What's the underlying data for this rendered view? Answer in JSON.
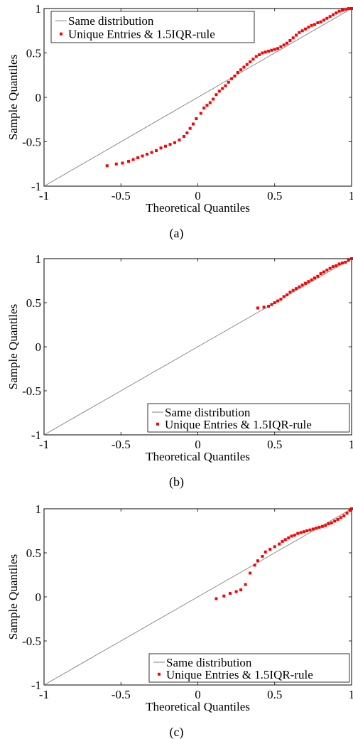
{
  "chart_data": [
    {
      "type": "scatter",
      "caption": "(a)",
      "xlabel": "Theoretical Quantiles",
      "ylabel": "Sample Quantiles",
      "xlim": [
        -1,
        1
      ],
      "ylim": [
        -1,
        1
      ],
      "xticks": [
        -1,
        -0.5,
        0,
        0.5,
        1
      ],
      "xtick_labels": [
        "-1",
        "-0.5",
        "0",
        "0.5",
        "1"
      ],
      "yticks": [
        -1,
        -0.5,
        0,
        0.5,
        1
      ],
      "ytick_labels": [
        "-1",
        "-0.5",
        "0",
        "0.5",
        "1"
      ],
      "grid": false,
      "legend_position": "top-left",
      "reference_line": {
        "name": "Same distribution",
        "color": "#808080",
        "x": [
          -1,
          1
        ],
        "y": [
          -1,
          1
        ]
      },
      "series": [
        {
          "name": "Unique Entries & 1.5IQR-rule",
          "color": "#ff0000",
          "points": [
            [
              -0.59,
              -0.77
            ],
            [
              -0.53,
              -0.75
            ],
            [
              -0.49,
              -0.74
            ],
            [
              -0.45,
              -0.72
            ],
            [
              -0.42,
              -0.7
            ],
            [
              -0.39,
              -0.68
            ],
            [
              -0.36,
              -0.66
            ],
            [
              -0.33,
              -0.64
            ],
            [
              -0.3,
              -0.62
            ],
            [
              -0.27,
              -0.6
            ],
            [
              -0.24,
              -0.57
            ],
            [
              -0.21,
              -0.55
            ],
            [
              -0.18,
              -0.53
            ],
            [
              -0.15,
              -0.51
            ],
            [
              -0.12,
              -0.48
            ],
            [
              -0.09,
              -0.44
            ],
            [
              -0.07,
              -0.4
            ],
            [
              -0.05,
              -0.35
            ],
            [
              -0.03,
              -0.3
            ],
            [
              -0.01,
              -0.24
            ],
            [
              0.02,
              -0.18
            ],
            [
              0.04,
              -0.12
            ],
            [
              0.06,
              -0.09
            ],
            [
              0.08,
              -0.06
            ],
            [
              0.1,
              -0.02
            ],
            [
              0.12,
              0.03
            ],
            [
              0.14,
              0.07
            ],
            [
              0.16,
              0.1
            ],
            [
              0.18,
              0.13
            ],
            [
              0.2,
              0.17
            ],
            [
              0.22,
              0.21
            ],
            [
              0.24,
              0.24
            ],
            [
              0.26,
              0.28
            ],
            [
              0.28,
              0.31
            ],
            [
              0.3,
              0.34
            ],
            [
              0.32,
              0.37
            ],
            [
              0.34,
              0.4
            ],
            [
              0.36,
              0.43
            ],
            [
              0.38,
              0.46
            ],
            [
              0.4,
              0.48
            ],
            [
              0.42,
              0.5
            ],
            [
              0.44,
              0.51
            ],
            [
              0.46,
              0.52
            ],
            [
              0.48,
              0.53
            ],
            [
              0.5,
              0.54
            ],
            [
              0.52,
              0.55
            ],
            [
              0.54,
              0.57
            ],
            [
              0.56,
              0.59
            ],
            [
              0.58,
              0.61
            ],
            [
              0.6,
              0.64
            ],
            [
              0.62,
              0.67
            ],
            [
              0.64,
              0.7
            ],
            [
              0.66,
              0.73
            ],
            [
              0.68,
              0.75
            ],
            [
              0.7,
              0.77
            ],
            [
              0.72,
              0.79
            ],
            [
              0.74,
              0.81
            ],
            [
              0.76,
              0.82
            ],
            [
              0.78,
              0.84
            ],
            [
              0.8,
              0.85
            ],
            [
              0.82,
              0.87
            ],
            [
              0.84,
              0.89
            ],
            [
              0.86,
              0.91
            ],
            [
              0.88,
              0.93
            ],
            [
              0.9,
              0.95
            ],
            [
              0.92,
              0.97
            ],
            [
              0.94,
              0.98
            ],
            [
              0.96,
              0.99
            ],
            [
              0.98,
              1.0
            ],
            [
              1.0,
              1.0
            ]
          ]
        }
      ]
    },
    {
      "type": "scatter",
      "caption": "(b)",
      "xlabel": "Theoretical Quantiles",
      "ylabel": "Sample Quantiles",
      "xlim": [
        -1,
        1
      ],
      "ylim": [
        -1,
        1
      ],
      "xticks": [
        -1,
        -0.5,
        0,
        0.5,
        1
      ],
      "xtick_labels": [
        "-1",
        "-0.5",
        "0",
        "0.5",
        "1"
      ],
      "yticks": [
        -1,
        -0.5,
        0,
        0.5,
        1
      ],
      "ytick_labels": [
        "-1",
        "-0.5",
        "0",
        "0.5",
        "1"
      ],
      "grid": false,
      "legend_position": "bottom-right",
      "reference_line": {
        "name": "Same distribution",
        "color": "#808080",
        "x": [
          -1,
          1
        ],
        "y": [
          -1,
          1
        ]
      },
      "series": [
        {
          "name": "Unique Entries & 1.5IQR-rule",
          "color": "#ff0000",
          "points": [
            [
              0.39,
              0.44
            ],
            [
              0.43,
              0.45
            ],
            [
              0.46,
              0.46
            ],
            [
              0.48,
              0.48
            ],
            [
              0.5,
              0.5
            ],
            [
              0.52,
              0.52
            ],
            [
              0.54,
              0.54
            ],
            [
              0.56,
              0.57
            ],
            [
              0.58,
              0.59
            ],
            [
              0.6,
              0.62
            ],
            [
              0.62,
              0.64
            ],
            [
              0.64,
              0.66
            ],
            [
              0.66,
              0.68
            ],
            [
              0.68,
              0.7
            ],
            [
              0.7,
              0.72
            ],
            [
              0.72,
              0.74
            ],
            [
              0.74,
              0.76
            ],
            [
              0.76,
              0.78
            ],
            [
              0.78,
              0.8
            ],
            [
              0.8,
              0.83
            ],
            [
              0.82,
              0.85
            ],
            [
              0.84,
              0.87
            ],
            [
              0.86,
              0.89
            ],
            [
              0.88,
              0.91
            ],
            [
              0.9,
              0.92
            ],
            [
              0.92,
              0.94
            ],
            [
              0.94,
              0.95
            ],
            [
              0.96,
              0.96
            ],
            [
              0.98,
              0.98
            ],
            [
              1.0,
              1.0
            ]
          ]
        }
      ]
    },
    {
      "type": "scatter",
      "caption": "(c)",
      "xlabel": "Theoretical Quantiles",
      "ylabel": "Sample Quantiles",
      "xlim": [
        -1,
        1
      ],
      "ylim": [
        -1,
        1
      ],
      "xticks": [
        -1,
        -0.5,
        0,
        0.5,
        1
      ],
      "xtick_labels": [
        "-1",
        "-0.5",
        "0",
        "0.5",
        "1"
      ],
      "yticks": [
        -1,
        -0.5,
        0,
        0.5,
        1
      ],
      "ytick_labels": [
        "-1",
        "-0.5",
        "0",
        "0.5",
        "1"
      ],
      "grid": false,
      "legend_position": "bottom-right",
      "reference_line": {
        "name": "Same distribution",
        "color": "#808080",
        "x": [
          -1,
          1
        ],
        "y": [
          -1,
          1
        ]
      },
      "series": [
        {
          "name": "Unique Entries & 1.5IQR-rule",
          "color": "#ff0000",
          "points": [
            [
              0.12,
              -0.02
            ],
            [
              0.17,
              0.01
            ],
            [
              0.21,
              0.04
            ],
            [
              0.25,
              0.06
            ],
            [
              0.28,
              0.08
            ],
            [
              0.31,
              0.14
            ],
            [
              0.34,
              0.27
            ],
            [
              0.37,
              0.36
            ],
            [
              0.39,
              0.41
            ],
            [
              0.42,
              0.46
            ],
            [
              0.44,
              0.51
            ],
            [
              0.47,
              0.54
            ],
            [
              0.5,
              0.57
            ],
            [
              0.53,
              0.6
            ],
            [
              0.55,
              0.63
            ],
            [
              0.57,
              0.65
            ],
            [
              0.59,
              0.67
            ],
            [
              0.61,
              0.69
            ],
            [
              0.63,
              0.7
            ],
            [
              0.65,
              0.72
            ],
            [
              0.67,
              0.73
            ],
            [
              0.69,
              0.74
            ],
            [
              0.71,
              0.75
            ],
            [
              0.73,
              0.76
            ],
            [
              0.75,
              0.77
            ],
            [
              0.77,
              0.78
            ],
            [
              0.79,
              0.79
            ],
            [
              0.81,
              0.8
            ],
            [
              0.83,
              0.81
            ],
            [
              0.85,
              0.83
            ],
            [
              0.87,
              0.84
            ],
            [
              0.89,
              0.86
            ],
            [
              0.91,
              0.88
            ],
            [
              0.93,
              0.9
            ],
            [
              0.95,
              0.92
            ],
            [
              0.97,
              0.95
            ],
            [
              0.99,
              0.98
            ],
            [
              1.0,
              1.0
            ]
          ]
        }
      ]
    }
  ]
}
